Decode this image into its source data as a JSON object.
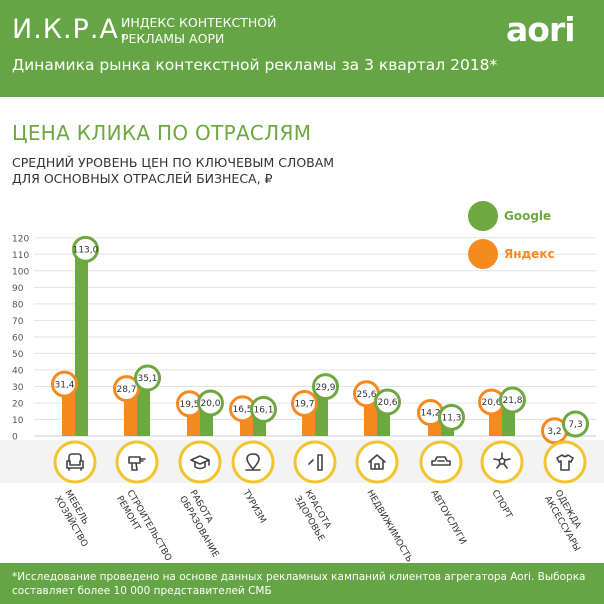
{
  "header": {
    "brand": "И.К.Р.А.",
    "brand_sub": "ИНДЕКС КОНТЕКСТНОЙ РЕКЛАМЫ АОРИ",
    "logo": "aori",
    "subtitle": "Динамика рынка контекстной рекламы за 3 квартал 2018*"
  },
  "title": "ЦЕНА КЛИКА ПО ОТРАСЛЯМ",
  "description": "СРЕДНИЙ УРОВЕНЬ ЦЕН ПО КЛЮЧЕВЫМ СЛОВАМ ДЛЯ ОСНОВНЫХ ОТРАСЛЕЙ БИЗНЕСА, ₽",
  "footer": "*Исследование проведено на основе данных рекламных кампаний клиентов агрегатора Aori. Выборка составляет более 10 000 представителей СМБ",
  "colors": {
    "green": "#6ea840",
    "orange": "#f58a21",
    "header_green": "#66a545",
    "icon_ring": "#f2c430",
    "grid": "#e3e3e3"
  },
  "chart_data": {
    "type": "bar",
    "title": "ЦЕНА КЛИКА ПО ОТРАСЛЯМ",
    "ylabel": "",
    "ylim": [
      0,
      120
    ],
    "yticks": [
      0,
      10,
      20,
      30,
      40,
      50,
      60,
      70,
      80,
      90,
      100,
      110,
      120
    ],
    "grid": true,
    "legend_position": "top-right",
    "categories": [
      {
        "name": "МЕБЕЛЬ ХОЗЯЙСТВО",
        "lines": [
          "МЕБЕЛЬ",
          "ХОЗЯЙСТВО"
        ],
        "icon": "armchair-icon"
      },
      {
        "name": "СТРОИТЕЛЬСТВО РЕМОНТ",
        "lines": [
          "СТРОИТЕЛЬСТВО",
          "РЕМОНТ"
        ],
        "icon": "drill-icon"
      },
      {
        "name": "РАБОТА ОБРАЗОВАНИЕ",
        "lines": [
          "РАБОТА",
          "ОБРАЗОВАНИЕ"
        ],
        "icon": "graduation-cap-icon"
      },
      {
        "name": "ТУРИЗМ",
        "lines": [
          "ТУРИЗМ"
        ],
        "icon": "map-pin-icon"
      },
      {
        "name": "КРАСОТА ЗДОРОВЬЕ",
        "lines": [
          "КРАСОТА",
          "ЗДОРОВЬЕ"
        ],
        "icon": "cosmetics-icon"
      },
      {
        "name": "НЕДВИЖИМОСТЬ",
        "lines": [
          "НЕДВИЖИМОСТЬ"
        ],
        "icon": "house-icon"
      },
      {
        "name": "АВТОУСЛУГИ",
        "lines": [
          "АВТОУСЛУГИ"
        ],
        "icon": "car-icon"
      },
      {
        "name": "СПОРТ",
        "lines": [
          "СПОРТ"
        ],
        "icon": "soccer-ball-icon"
      },
      {
        "name": "ОДЕЖДА АКСЕССУАРЫ",
        "lines": [
          "ОДЕЖДА",
          "АКСЕССУАРЫ"
        ],
        "icon": "tshirt-icon"
      }
    ],
    "series": [
      {
        "name": "Яндекс",
        "color": "#f58a21",
        "values": [
          31.4,
          28.7,
          19.5,
          16.5,
          19.7,
          25.6,
          14.2,
          20.6,
          3.2
        ],
        "labels": [
          "31,4",
          "28,7",
          "19,5",
          "16,5",
          "19,7",
          "25,6",
          "14,2",
          "20,6",
          "3,2"
        ]
      },
      {
        "name": "Google",
        "color": "#6ea840",
        "values": [
          113.0,
          35.1,
          20.0,
          16.1,
          29.9,
          20.6,
          11.3,
          21.8,
          7.3
        ],
        "labels": [
          "113,0",
          "35,1",
          "20,0",
          "16,1",
          "29,9",
          "20,6",
          "11,3",
          "21,8",
          "7,3"
        ]
      }
    ],
    "legend": [
      {
        "name": "Google",
        "color": "#6ea840"
      },
      {
        "name": "Яндекс",
        "color": "#f58a21"
      }
    ]
  }
}
